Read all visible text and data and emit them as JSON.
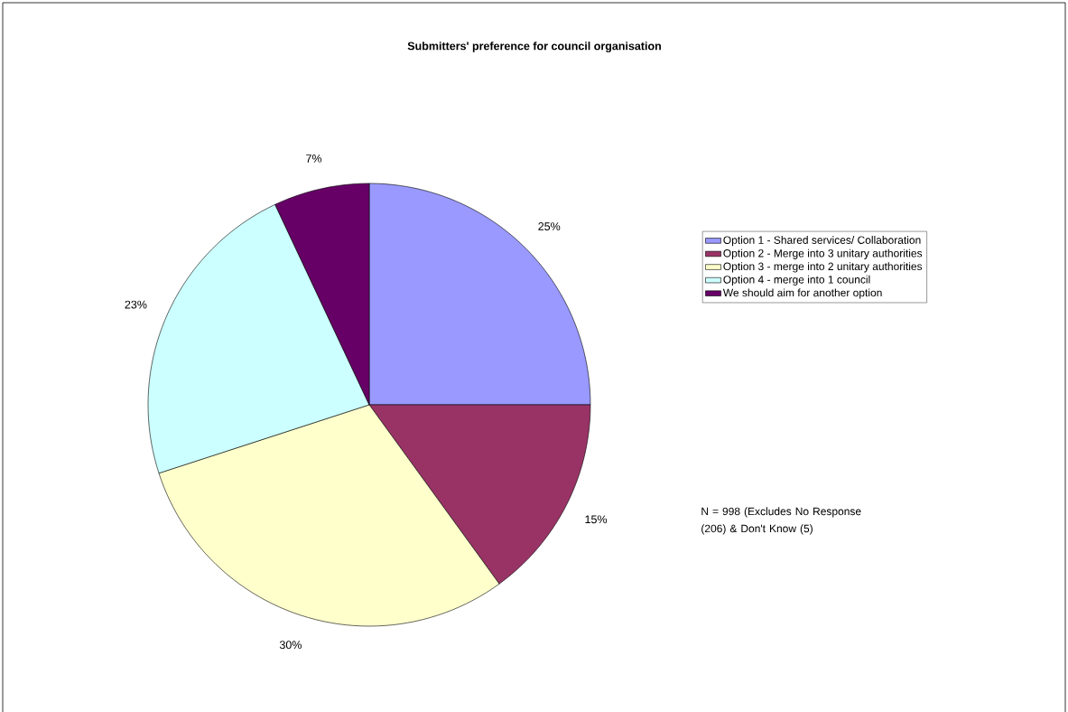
{
  "chart_data": {
    "type": "pie",
    "title": "Submitters' preference for council organisation",
    "categories": [
      "Option 1 - Shared services/ Collaboration",
      "Option 2 - Merge into 3 unitary authorities",
      "Option 3 - merge into 2 unitary authorities",
      "Option 4 - merge into 1 council",
      "We should aim for another option"
    ],
    "values": [
      25,
      15,
      30,
      23,
      7
    ],
    "value_labels": [
      "25%",
      "15%",
      "30%",
      "23%",
      "7%"
    ],
    "colors": [
      "#9999ff",
      "#993366",
      "#ffffcc",
      "#ccffff",
      "#660066"
    ],
    "legend": "top right",
    "annotations": [
      "N = 998 (Excludes No Response (206) & Don't Know (5)"
    ]
  }
}
